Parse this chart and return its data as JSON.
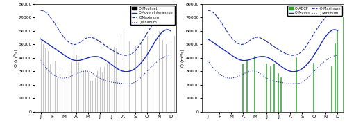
{
  "months": [
    "J",
    "F",
    "M",
    "A",
    "M",
    "J",
    "J",
    "A",
    "S",
    "O",
    "N",
    "D"
  ],
  "ylim": [
    0,
    80000
  ],
  "yticks": [
    0,
    10000,
    20000,
    30000,
    40000,
    50000,
    60000,
    70000,
    80000
  ],
  "ylabel": "Q (m³/s)",
  "qmoyen": [
    54000,
    48000,
    42000,
    38000,
    40000,
    40500,
    35000,
    30000,
    32000,
    42000,
    56000,
    60000
  ],
  "qmaximum": [
    75000,
    68000,
    55000,
    50000,
    55000,
    52000,
    46000,
    42000,
    45000,
    58000,
    70000,
    76000
  ],
  "qminimum": [
    38000,
    28000,
    25000,
    28000,
    30000,
    25000,
    22000,
    21000,
    22000,
    30000,
    38000,
    42000
  ],
  "moulinet_heights": [
    54000,
    50000,
    47000,
    45000,
    35000,
    48000,
    38000,
    25000,
    33000,
    32000,
    28000,
    26000,
    30000,
    37000,
    50000,
    42000,
    37000,
    47000,
    30000,
    31000,
    29000,
    23000,
    23000,
    25000,
    30000,
    33000,
    29000,
    33000,
    36000,
    35000,
    42000,
    48000,
    47000,
    50000,
    58000,
    62000,
    52000,
    49000,
    52000,
    56000,
    58000,
    60000,
    53000,
    50000,
    52000,
    56000,
    61000,
    56000
  ],
  "moulinet_positions": [
    0.0,
    0.2,
    0.4,
    0.6,
    0.8,
    1.0,
    1.2,
    1.4,
    1.6,
    1.8,
    2.0,
    2.2,
    2.4,
    2.6,
    2.8,
    3.0,
    3.2,
    3.4,
    3.6,
    3.8,
    4.0,
    4.2,
    4.4,
    4.6,
    4.8,
    5.0,
    5.2,
    5.4,
    5.6,
    5.8,
    6.0,
    6.2,
    6.4,
    6.6,
    6.8,
    7.0,
    7.5,
    8.0,
    8.5,
    9.0,
    9.5,
    10.0,
    10.3,
    10.6,
    11.0,
    11.3,
    11.6,
    11.9
  ],
  "adcp_heights": [
    35000,
    38000,
    41000,
    35000,
    33000,
    35000,
    28000,
    25000,
    40000,
    36000,
    33000,
    50000,
    60000,
    70000
  ],
  "adcp_positions": [
    3.0,
    3.3,
    4.0,
    5.0,
    5.3,
    5.6,
    6.0,
    6.2,
    7.5,
    9.0,
    10.5,
    10.8,
    11.0,
    11.5
  ],
  "line_color_mean": "#1a2db5",
  "line_color_max": "#1a2db5",
  "line_color_min": "#1a2db5",
  "bar_color_moulinet": "#b0b0b0",
  "bar_color_adcp": "#2ca02c",
  "legend_left": [
    "Q Moulinet",
    "QMoyen Interannuel",
    "-QMaximum",
    "QMinimum"
  ],
  "legend_right": [
    "Q ADCP",
    "Q Moyen",
    "-Q Maximum",
    "Q Minimum"
  ]
}
